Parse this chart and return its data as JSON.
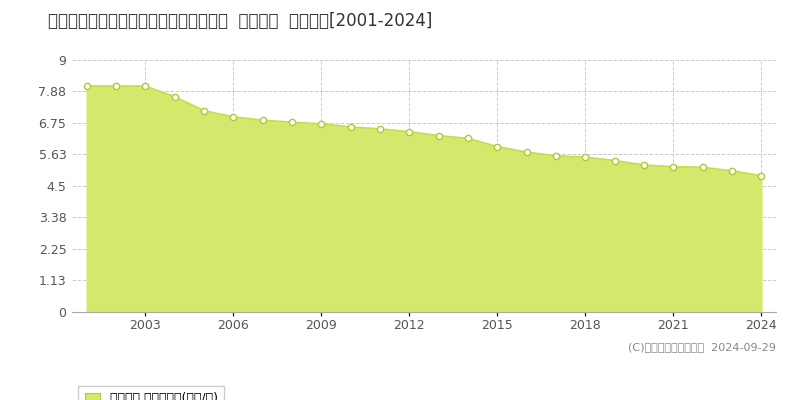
{
  "title": "鳥取県鳥取市久末字東土居２１７番１外  基準地価  地価推移[2001-2024]",
  "years": [
    2001,
    2002,
    2003,
    2004,
    2005,
    2006,
    2007,
    2008,
    2009,
    2010,
    2011,
    2012,
    2013,
    2014,
    2015,
    2016,
    2017,
    2018,
    2019,
    2020,
    2021,
    2022,
    2023,
    2024
  ],
  "values": [
    8.07,
    8.07,
    8.07,
    7.69,
    7.19,
    6.97,
    6.85,
    6.78,
    6.72,
    6.61,
    6.54,
    6.44,
    6.3,
    6.2,
    5.91,
    5.71,
    5.58,
    5.53,
    5.41,
    5.25,
    5.19,
    5.17,
    5.04,
    4.87
  ],
  "yticks": [
    0,
    1.13,
    2.25,
    3.38,
    4.5,
    5.63,
    6.75,
    7.88,
    9
  ],
  "ylim": [
    0,
    9
  ],
  "fill_color": "#d4e96b",
  "line_color": "#c8dc50",
  "marker_facecolor": "#ffffff",
  "marker_edgecolor": "#b0c832",
  "background_color": "#ffffff",
  "plot_bg_color": "#ffffff",
  "grid_color": "#cccccc",
  "title_fontsize": 12,
  "tick_fontsize": 9,
  "legend_label": "基準地価 平均坪単価(万円/坪)",
  "copyright_text": "(C)土地価格ドットコム  2024-09-29",
  "xtick_years": [
    2003,
    2006,
    2009,
    2012,
    2015,
    2018,
    2021,
    2024
  ],
  "xlim_left": 2000.5,
  "xlim_right": 2024.5
}
